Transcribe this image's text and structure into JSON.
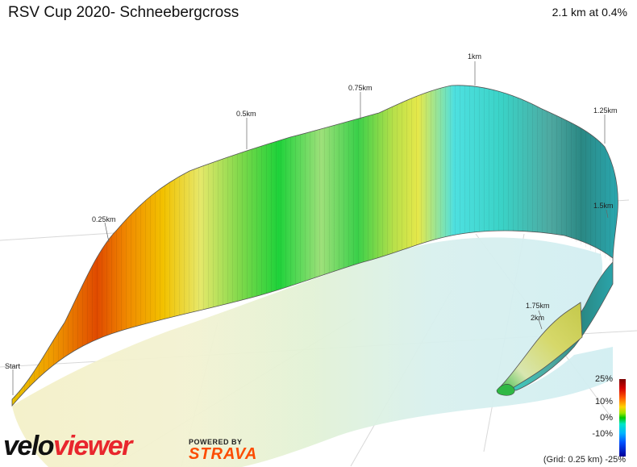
{
  "header": {
    "title": "RSV Cup 2020- Schneebergcross",
    "stats": "2.1 km at 0.4%"
  },
  "profile": {
    "gradient_scale": [
      "25%",
      "10%",
      "0%",
      "-10%",
      "-25%"
    ],
    "grid_note": "(Grid: 0.25 km)",
    "km_labels": [
      "Start",
      "0.25km",
      "0.5km",
      "0.75km",
      "1km",
      "1.25km",
      "1.5km",
      "1.75km",
      "2km"
    ]
  },
  "branding": {
    "logo_part1": "velo",
    "logo_part2": "viewer",
    "powered_by": "POWERED BY",
    "strava": "STRAVA"
  },
  "colors": {
    "steep_up": "#d83a00",
    "moderate_up": "#f0c400",
    "flat": "#2fd24a",
    "moderate_down": "#33d6d6",
    "steep_down": "#2e8a86"
  }
}
